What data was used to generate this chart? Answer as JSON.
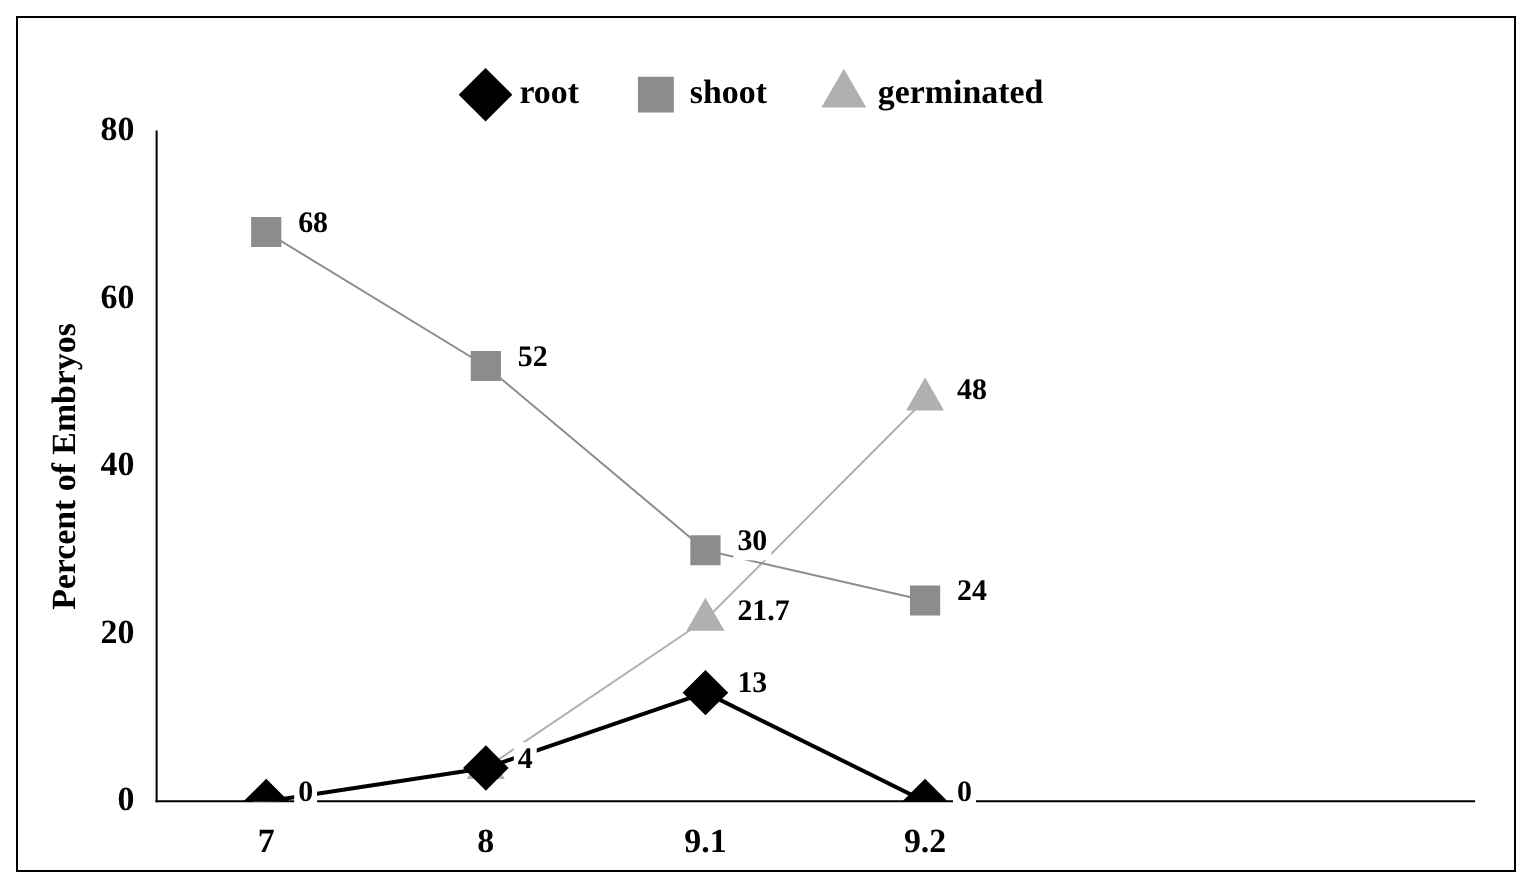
{
  "chart_data": {
    "type": "line",
    "ylabel": "Percent of Embryos",
    "categories": [
      "7",
      "8",
      "9.1",
      "9.2",
      null,
      null
    ],
    "series": [
      {
        "name": "root",
        "color": "#000000",
        "marker": "diamond",
        "values": [
          0,
          4,
          13,
          0,
          null,
          null
        ],
        "value_labels": [
          null,
          null,
          "13",
          "0",
          null,
          null
        ]
      },
      {
        "name": "shoot",
        "color": "#8c8c8c",
        "marker": "square",
        "values": [
          68,
          52,
          30,
          24,
          null,
          null
        ],
        "value_labels": [
          "68",
          "52",
          "30",
          "24",
          null,
          null
        ]
      },
      {
        "name": "germinated",
        "color": "#b0b0b0",
        "marker": "triangle",
        "values": [
          0,
          4,
          21.7,
          48,
          null,
          null
        ],
        "value_labels": [
          "0",
          "4",
          "21.7",
          "48",
          null,
          null
        ]
      }
    ],
    "ylim": [
      0,
      80
    ],
    "yticks": [
      0,
      20,
      40,
      60,
      80
    ],
    "legend": "top"
  }
}
